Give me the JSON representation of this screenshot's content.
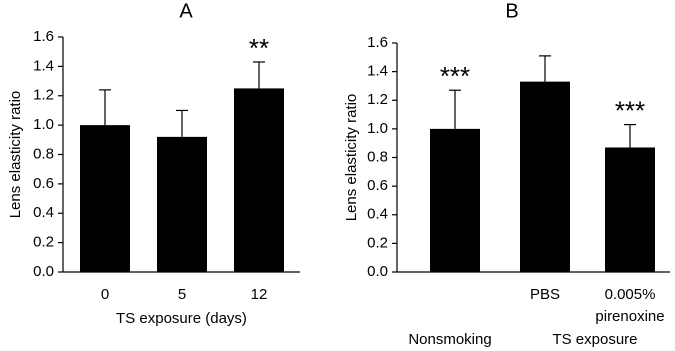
{
  "chart_data": [
    {
      "type": "bar",
      "title": "A",
      "y_label": "Lens elasticity ratio",
      "x_label": "TS exposure (days)",
      "categories": [
        "0",
        "5",
        "12"
      ],
      "values": [
        1.0,
        0.92,
        1.25
      ],
      "errors": [
        0.24,
        0.18,
        0.18
      ],
      "annotations": [
        null,
        null,
        "**"
      ],
      "color": "#000000",
      "ylim": [
        0,
        1.6
      ],
      "yticks": [
        {
          "value": 0,
          "label": "0.0"
        },
        0.2,
        0.4,
        0.6,
        0.8,
        {
          "value": 1,
          "label": "1.0"
        },
        1.2,
        1.4,
        1.6
      ]
    },
    {
      "type": "bar",
      "title": "B",
      "y_label": "Lens elasticity ratio",
      "categories": [
        null,
        "PBS",
        "0.005% pirenoxine"
      ],
      "group_labels": [
        "Nonsmoking",
        "TS exposure"
      ],
      "values": [
        1.0,
        1.33,
        0.87
      ],
      "errors": [
        0.27,
        0.18,
        0.16
      ],
      "annotations": [
        "***",
        null,
        "***"
      ],
      "color": "#000000",
      "ylim": [
        0,
        1.6
      ],
      "yticks": [
        {
          "value": 0,
          "label": "0.0"
        },
        0.2,
        0.4,
        0.6,
        0.8,
        {
          "value": 1,
          "label": "1.0"
        },
        1.2,
        1.4,
        1.6
      ]
    }
  ]
}
